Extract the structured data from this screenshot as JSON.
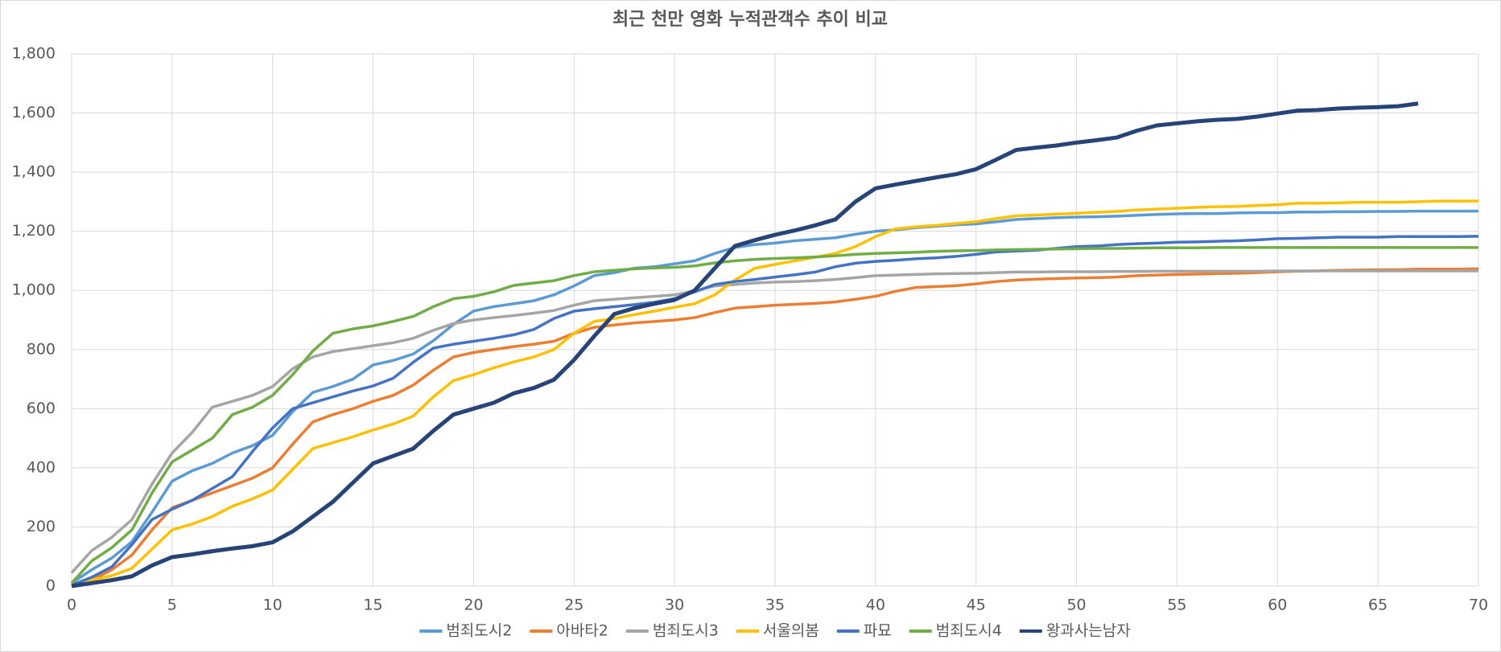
{
  "chart_data": {
    "type": "line",
    "title": "최근 천만 영화 누적관객수 추이 비교",
    "x": [
      0,
      1,
      2,
      3,
      4,
      5,
      6,
      7,
      8,
      9,
      10,
      11,
      12,
      13,
      14,
      15,
      16,
      17,
      18,
      19,
      20,
      21,
      22,
      23,
      24,
      25,
      26,
      27,
      28,
      29,
      30,
      31,
      32,
      33,
      34,
      35,
      36,
      37,
      38,
      39,
      40,
      41,
      42,
      43,
      44,
      45,
      46,
      47,
      48,
      49,
      50,
      51,
      52,
      53,
      54,
      55,
      56,
      57,
      58,
      59,
      60,
      61,
      62,
      63,
      64,
      65,
      66,
      67,
      68,
      69,
      70
    ],
    "xlim": [
      0,
      70
    ],
    "xticks": [
      0,
      5,
      10,
      15,
      20,
      25,
      30,
      35,
      40,
      45,
      50,
      55,
      60,
      65,
      70
    ],
    "ylim": [
      0,
      1800
    ],
    "yticks": [
      0,
      200,
      400,
      600,
      800,
      {
        "value": 1000,
        "label": "1,000"
      },
      {
        "value": 1200,
        "label": "1,200"
      },
      {
        "value": 1400,
        "label": "1,400"
      },
      {
        "value": 1600,
        "label": "1,600"
      },
      {
        "value": 1800,
        "label": "1,800"
      }
    ],
    "grid": true,
    "legend": "bottom",
    "series": [
      {
        "name": "범죄도시2",
        "color": "#5b9bd5",
        "values": [
          10,
          55,
          95,
          150,
          250,
          355,
          390,
          415,
          450,
          475,
          510,
          590,
          655,
          675,
          700,
          748,
          763,
          785,
          830,
          885,
          930,
          945,
          955,
          965,
          985,
          1015,
          1050,
          1060,
          1075,
          1080,
          1090,
          1100,
          1125,
          1145,
          1155,
          1160,
          1168,
          1173,
          1178,
          1190,
          1200,
          1205,
          1212,
          1217,
          1222,
          1225,
          1232,
          1240,
          1243,
          1246,
          1248,
          1249,
          1251,
          1254,
          1257,
          1259,
          1260,
          1260,
          1262,
          1263,
          1263,
          1265,
          1265,
          1266,
          1266,
          1267,
          1267,
          1268,
          1268,
          1268,
          1268
        ]
      },
      {
        "name": "아바타2",
        "color": "#ed7d31",
        "values": [
          5,
          20,
          55,
          105,
          190,
          265,
          290,
          315,
          340,
          365,
          400,
          480,
          555,
          580,
          600,
          625,
          645,
          680,
          730,
          775,
          790,
          800,
          810,
          818,
          828,
          855,
          875,
          883,
          890,
          895,
          900,
          908,
          925,
          940,
          945,
          950,
          953,
          956,
          961,
          970,
          980,
          997,
          1010,
          1013,
          1016,
          1022,
          1030,
          1035,
          1038,
          1040,
          1042,
          1043,
          1045,
          1050,
          1052,
          1054,
          1055,
          1057,
          1058,
          1060,
          1063,
          1065,
          1066,
          1068,
          1069,
          1070,
          1070,
          1072,
          1072,
          1072,
          1073
        ]
      },
      {
        "name": "범죄도시3",
        "color": "#a5a5a5",
        "values": [
          45,
          120,
          165,
          225,
          345,
          450,
          520,
          605,
          625,
          645,
          675,
          735,
          775,
          793,
          803,
          813,
          823,
          838,
          865,
          888,
          900,
          908,
          915,
          923,
          932,
          950,
          965,
          970,
          975,
          980,
          985,
          998,
          1015,
          1020,
          1025,
          1028,
          1030,
          1033,
          1037,
          1043,
          1050,
          1052,
          1054,
          1056,
          1057,
          1058,
          1060,
          1062,
          1062,
          1063,
          1063,
          1063,
          1064,
          1064,
          1065,
          1065,
          1065,
          1065,
          1065,
          1065,
          1066,
          1066,
          1066,
          1066,
          1066,
          1066,
          1066,
          1066,
          1066,
          1066,
          1066
        ]
      },
      {
        "name": "서울의봄",
        "color": "#ffc000",
        "values": [
          3,
          20,
          35,
          60,
          125,
          190,
          210,
          235,
          270,
          295,
          325,
          395,
          465,
          485,
          505,
          528,
          548,
          575,
          640,
          695,
          715,
          738,
          758,
          775,
          800,
          855,
          895,
          905,
          918,
          930,
          943,
          955,
          985,
          1035,
          1075,
          1088,
          1100,
          1112,
          1125,
          1148,
          1182,
          1208,
          1215,
          1220,
          1226,
          1232,
          1243,
          1252,
          1255,
          1258,
          1261,
          1264,
          1267,
          1272,
          1275,
          1278,
          1281,
          1283,
          1284,
          1287,
          1290,
          1295,
          1295,
          1296,
          1298,
          1298,
          1298,
          1300,
          1302,
          1302,
          1302
        ]
      },
      {
        "name": "파묘",
        "color": "#4472c4",
        "values": [
          3,
          30,
          65,
          140,
          225,
          260,
          290,
          330,
          370,
          455,
          535,
          600,
          620,
          640,
          660,
          677,
          703,
          757,
          805,
          818,
          828,
          838,
          850,
          868,
          905,
          930,
          938,
          945,
          952,
          960,
          972,
          995,
          1020,
          1030,
          1037,
          1045,
          1053,
          1062,
          1080,
          1092,
          1098,
          1102,
          1107,
          1110,
          1115,
          1122,
          1130,
          1133,
          1136,
          1142,
          1148,
          1150,
          1155,
          1158,
          1160,
          1163,
          1164,
          1166,
          1168,
          1171,
          1175,
          1176,
          1178,
          1180,
          1180,
          1180,
          1182,
          1182,
          1182,
          1182,
          1183
        ]
      },
      {
        "name": "범죄도시4",
        "color": "#70ad47",
        "values": [
          10,
          85,
          130,
          190,
          315,
          420,
          460,
          500,
          580,
          605,
          645,
          715,
          795,
          855,
          870,
          880,
          895,
          912,
          945,
          972,
          980,
          995,
          1017,
          1025,
          1033,
          1050,
          1063,
          1068,
          1073,
          1076,
          1078,
          1083,
          1093,
          1100,
          1105,
          1108,
          1110,
          1113,
          1117,
          1122,
          1125,
          1127,
          1129,
          1132,
          1134,
          1135,
          1137,
          1138,
          1139,
          1140,
          1141,
          1142,
          1142,
          1143,
          1144,
          1144,
          1144,
          1145,
          1145,
          1145,
          1145,
          1145,
          1145,
          1145,
          1145,
          1145,
          1145,
          1145,
          1145,
          1145,
          1145
        ]
      },
      {
        "name": "왕과사는남자",
        "color": "#264478",
        "values": [
          0,
          10,
          20,
          33,
          70,
          98,
          107,
          118,
          127,
          135,
          148,
          185,
          235,
          285,
          350,
          415,
          440,
          465,
          525,
          580,
          600,
          620,
          652,
          670,
          698,
          765,
          845,
          920,
          940,
          955,
          968,
          1000,
          1075,
          1150,
          1170,
          1188,
          1203,
          1220,
          1240,
          1300,
          1345,
          1358,
          1370,
          1382,
          1393,
          1410,
          1442,
          1475,
          1483,
          1490,
          1500,
          1508,
          1517,
          1540,
          1558,
          1565,
          1572,
          1577,
          1580,
          1588,
          1598,
          1608,
          1610,
          1615,
          1618,
          1620,
          1623,
          1632,
          null,
          null,
          null
        ]
      }
    ]
  }
}
